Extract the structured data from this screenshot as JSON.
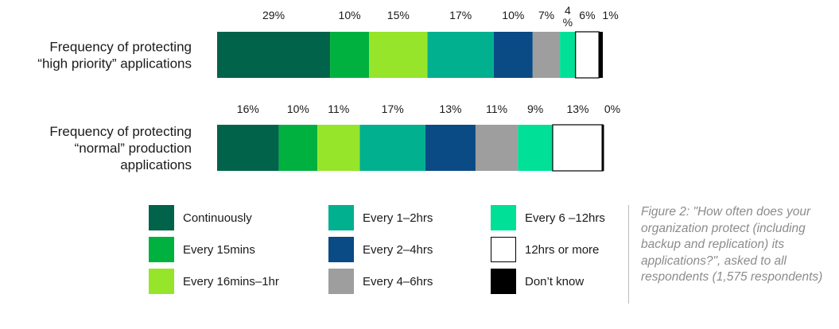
{
  "chart_data": {
    "type": "bar",
    "orientation": "horizontal",
    "stacked": true,
    "categories": [
      [
        "Frequency of protecting",
        "“high priority” applications"
      ],
      [
        "Frequency of protecting",
        "“normal” production",
        "applications"
      ]
    ],
    "series": [
      {
        "name": "Continuously",
        "color": "#00634a",
        "values": [
          29,
          16
        ],
        "labels": [
          "29%",
          "16%"
        ]
      },
      {
        "name": "Every 15mins",
        "color": "#00b140",
        "values": [
          10,
          10
        ],
        "labels": [
          "10%",
          "10%"
        ]
      },
      {
        "name": "Every 16mins–1hr",
        "color": "#96e52b",
        "values": [
          15,
          11
        ],
        "labels": [
          "15%",
          "11%"
        ]
      },
      {
        "name": "Every 1–2hrs",
        "color": "#00b08f",
        "values": [
          17,
          17
        ],
        "labels": [
          "17%",
          "17%"
        ]
      },
      {
        "name": "Every 2–4hrs",
        "color": "#0a4a85",
        "values": [
          10,
          13
        ],
        "labels": [
          "10%",
          "13%"
        ]
      },
      {
        "name": "Every 4–6hrs",
        "color": "#9e9e9e",
        "values": [
          7,
          11
        ],
        "labels": [
          "7%",
          "11%"
        ]
      },
      {
        "name": "Every 6 –12hrs",
        "color": "#00e096",
        "values": [
          4,
          9
        ],
        "labels": [
          "4%",
          "9%"
        ]
      },
      {
        "name": "12hrs or more",
        "color": "#ffffff",
        "values": [
          6,
          13
        ],
        "labels": [
          "6%",
          "13%"
        ]
      },
      {
        "name": "Don’t know",
        "color": "#000000",
        "values": [
          1,
          0
        ],
        "labels": [
          "1%",
          "0%"
        ]
      }
    ],
    "legend_position": "bottom",
    "grid": false
  },
  "caption": "Figure 2: \"How often does your organization protect (including backup and replication) its applications?\", asked to all respondents (1,575 respondents)"
}
